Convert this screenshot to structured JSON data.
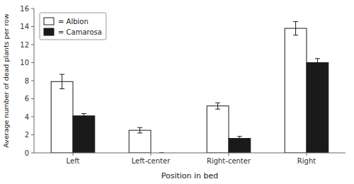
{
  "chart_data": {
    "type": "bar",
    "xlabel": "Position in bed",
    "ylabel": "Average number of dead plants per row",
    "categories": [
      "Left",
      "Left-center",
      "Right-center",
      "Right"
    ],
    "series": [
      {
        "name": "= Albion",
        "color": "#ffffff",
        "values": [
          7.9,
          2.5,
          5.2,
          13.8
        ],
        "errors": [
          0.8,
          0.3,
          0.35,
          0.75
        ]
      },
      {
        "name": "= Camarosa",
        "color": "#1a1a1a",
        "values": [
          4.1,
          0.0,
          1.6,
          10.0
        ],
        "errors": [
          0.25,
          0.0,
          0.22,
          0.45
        ]
      }
    ],
    "ylim": [
      0,
      16
    ],
    "yticks": [
      0,
      2,
      4,
      6,
      8,
      10,
      12,
      14,
      16
    ],
    "grid": false,
    "legend": "upper left"
  }
}
